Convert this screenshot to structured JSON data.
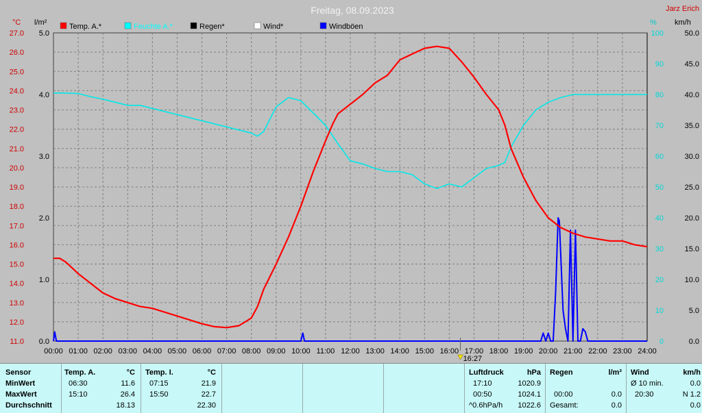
{
  "title": "Freitag, 08.09.2023",
  "author": "Jarz Erich",
  "axis_units": {
    "temp": "°C",
    "rain": "l/m²",
    "hum": "%",
    "wind": "km/h"
  },
  "marker_time": "16:27",
  "colors": {
    "temp": "#ff0000",
    "hum": "#00e8e8",
    "rain": "#000000",
    "wind": "#ffffff",
    "gust": "#0000ff",
    "plot_bg": "#c0c0c0",
    "grid": "#808080"
  },
  "legend": [
    {
      "label": "Temp. A.*",
      "color": "#ff0000"
    },
    {
      "label": "Feuchte A.*",
      "color": "#00ffff"
    },
    {
      "label": "Regen*",
      "color": "#000000"
    },
    {
      "label": "Wind*",
      "color": "#ffffff"
    },
    {
      "label": "Windböen",
      "color": "#0000ff"
    }
  ],
  "chart_data": {
    "type": "line",
    "title": "Freitag, 08.09.2023",
    "x_ticks": [
      "00:00",
      "01:00",
      "02:00",
      "03:00",
      "04:00",
      "05:00",
      "06:00",
      "07:00",
      "08:00",
      "09:00",
      "10:00",
      "11:00",
      "12:00",
      "13:00",
      "14:00",
      "15:00",
      "16:00",
      "17:00",
      "18:00",
      "19:00",
      "20:00",
      "21:00",
      "22:00",
      "23:00",
      "24:00"
    ],
    "y_temp_ticks": [
      "27.0",
      "26.0",
      "25.0",
      "24.0",
      "23.0",
      "22.0",
      "21.0",
      "20.0",
      "19.0",
      "18.0",
      "17.0",
      "16.0",
      "15.0",
      "14.0",
      "13.0",
      "12.0",
      "11.0"
    ],
    "y_rain_ticks": [
      "5.0",
      "4.0",
      "3.0",
      "2.0",
      "1.0",
      "0.0"
    ],
    "y_hum_ticks": [
      "100",
      "90",
      "80",
      "70",
      "60",
      "50",
      "40",
      "30",
      "20",
      "10",
      "0"
    ],
    "y_wind_ticks": [
      "50.0",
      "45.0",
      "40.0",
      "35.0",
      "30.0",
      "25.0",
      "20.0",
      "15.0",
      "10.0",
      "5.0",
      "0.0"
    ],
    "ylim_temp": [
      11,
      27
    ],
    "ylim_rain": [
      0,
      5
    ],
    "ylim_hum": [
      0,
      100
    ],
    "ylim_wind": [
      0,
      50
    ],
    "series": [
      {
        "name": "Temp. A.*",
        "axis": "temp",
        "color": "#ff0000",
        "x": [
          0,
          0.25,
          0.5,
          0.75,
          1,
          1.5,
          2,
          2.5,
          3,
          3.5,
          4,
          4.5,
          5,
          5.5,
          6,
          6.5,
          7,
          7.5,
          8,
          8.25,
          8.5,
          9,
          9.5,
          10,
          10.5,
          11,
          11.3,
          11.5,
          12,
          12.5,
          13,
          13.5,
          14,
          14.5,
          15,
          15.5,
          16,
          16.5,
          17,
          17.5,
          18,
          18.25,
          18.5,
          19,
          19.5,
          20,
          20.5,
          21,
          21.5,
          22,
          22.5,
          23,
          23.5,
          24
        ],
        "y": [
          15.3,
          15.3,
          15.1,
          14.8,
          14.5,
          14.0,
          13.5,
          13.2,
          13.0,
          12.8,
          12.7,
          12.5,
          12.3,
          12.1,
          11.9,
          11.75,
          11.7,
          11.8,
          12.2,
          12.8,
          13.7,
          15.0,
          16.4,
          18.0,
          19.8,
          21.4,
          22.3,
          22.8,
          23.3,
          23.8,
          24.4,
          24.8,
          25.6,
          25.9,
          26.2,
          26.3,
          26.2,
          25.5,
          24.7,
          23.8,
          23.0,
          22.2,
          21.0,
          19.5,
          18.3,
          17.4,
          16.9,
          16.6,
          16.4,
          16.3,
          16.2,
          16.2,
          16.0,
          15.9
        ]
      },
      {
        "name": "Feuchte A.*",
        "axis": "hum",
        "color": "#00e8e8",
        "x": [
          0,
          0.5,
          1,
          1.5,
          2,
          2.5,
          3,
          3.5,
          4,
          4.5,
          5,
          5.5,
          6,
          6.5,
          7,
          7.5,
          8,
          8.25,
          8.5,
          9,
          9.5,
          10,
          10.5,
          11,
          11.5,
          12,
          12.5,
          13,
          13.5,
          14,
          14.5,
          15,
          15.5,
          16,
          16.5,
          17,
          17.5,
          18,
          18.25,
          18.5,
          19,
          19.5,
          20,
          20.5,
          21,
          21.5,
          22,
          22.5,
          23,
          23.5,
          24
        ],
        "y": [
          80.5,
          80.5,
          80.3,
          79.3,
          78.5,
          77.5,
          76.5,
          76.5,
          75.5,
          74.5,
          73.5,
          72.5,
          71.5,
          70.5,
          69.5,
          68.5,
          67.5,
          66.5,
          68,
          76,
          79,
          78,
          74,
          70,
          64,
          58.5,
          57.5,
          56,
          55,
          55,
          54,
          51,
          49.5,
          51,
          50,
          53,
          56,
          57,
          58,
          63,
          70,
          75,
          77.5,
          79,
          80,
          80,
          80,
          80,
          80,
          80,
          80
        ]
      },
      {
        "name": "Windböen",
        "axis": "wind",
        "color": "#0000ff",
        "x": [
          0,
          0.05,
          0.12,
          0.2,
          10.0,
          10.08,
          10.15,
          10.3,
          19.7,
          19.8,
          19.9,
          20.0,
          20.1,
          20.2,
          20.3,
          20.4,
          20.45,
          20.6,
          20.7,
          20.8,
          20.9,
          21.0,
          21.1,
          21.2,
          21.3,
          21.4,
          21.5,
          21.6,
          21.7,
          21.8,
          21.9,
          24
        ],
        "y": [
          0,
          1.5,
          0,
          0,
          0,
          1.3,
          0,
          0,
          0,
          1.3,
          0,
          1.3,
          0,
          0,
          8,
          20,
          19.5,
          5,
          2,
          0,
          18,
          0,
          18,
          0,
          0,
          2,
          1.5,
          0,
          0,
          0,
          0,
          0
        ]
      }
    ]
  },
  "stats": {
    "sensor": {
      "header": "Sensor",
      "rows": [
        "MinWert",
        "MaxWert",
        "Durchschnitt"
      ]
    },
    "temp_a": {
      "header": "Temp. A.",
      "unit": "°C",
      "rows": [
        [
          "06:30",
          "11.6"
        ],
        [
          "15:10",
          "26.4"
        ],
        [
          "",
          "18.13"
        ]
      ]
    },
    "temp_i": {
      "header": "Temp. I.",
      "unit": "°C",
      "rows": [
        [
          "07:15",
          "21.9"
        ],
        [
          "15:50",
          "22.7"
        ],
        [
          "",
          "22.30"
        ]
      ]
    },
    "pressure": {
      "header": "Luftdruck",
      "unit": "hPa",
      "rows": [
        [
          "17:10",
          "1020.9"
        ],
        [
          "00:50",
          "1024.1"
        ],
        [
          "^0.6hPa/h",
          "1022.6"
        ]
      ]
    },
    "rain": {
      "header": "Regen",
      "unit": "l/m²",
      "rows": [
        [
          "",
          ""
        ],
        [
          "00:00",
          "0.0"
        ],
        [
          "Gesamt:",
          "0.0"
        ]
      ]
    },
    "wind": {
      "header": "Wind",
      "unit": "km/h",
      "rows": [
        [
          "Ø 10 min.",
          "0.0"
        ],
        [
          "20:30",
          "N 1.2"
        ],
        [
          "",
          "0.0"
        ]
      ]
    }
  }
}
